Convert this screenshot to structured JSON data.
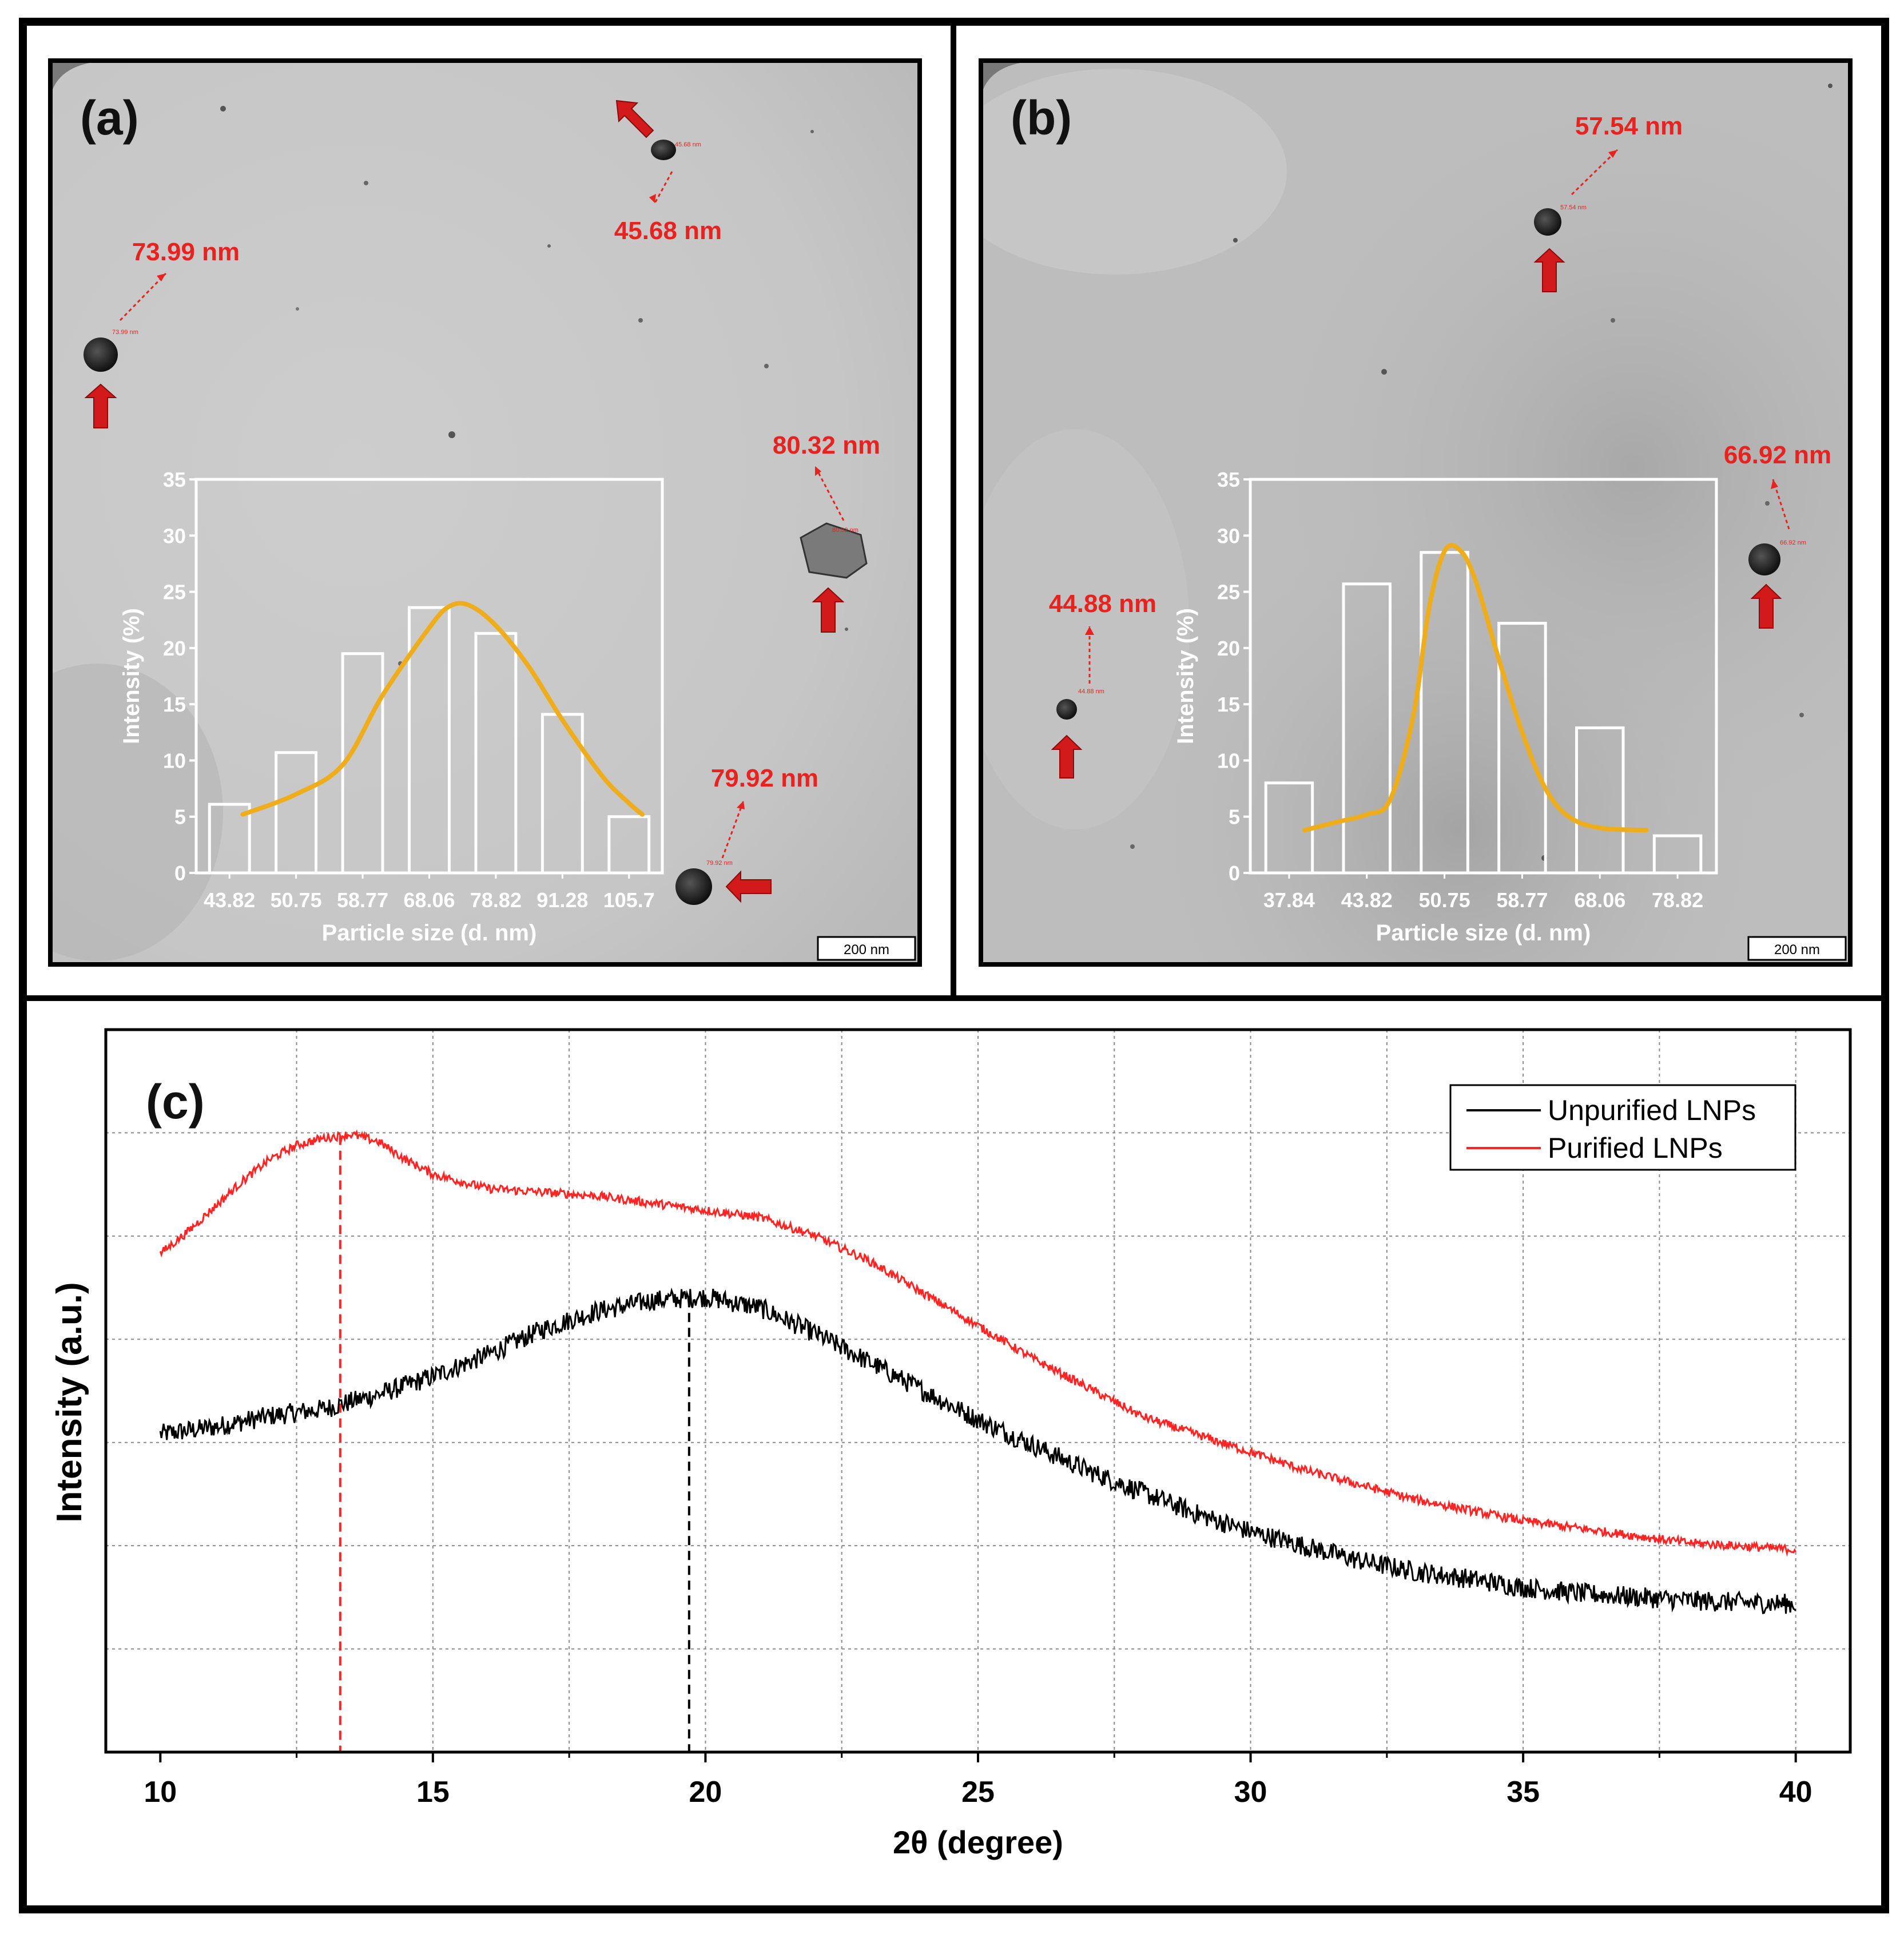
{
  "colors": {
    "frame": "#000000",
    "tem_bg": "#c9c9c9",
    "tem_dark": "#a9a9a9",
    "annotation": "#e8231f",
    "arrow": "#d31a1a",
    "fit_curve": "#f0ad1b",
    "bar_outline": "#ffffff",
    "unpurified": "#000000",
    "purified": "#ff2424",
    "grid": "#8a8a8a"
  },
  "panel_a": {
    "label": "(a)",
    "scale_bar": "200 nm",
    "annotations": [
      "73.99 nm",
      "45.68 nm",
      "80.32 nm",
      "79.92 nm"
    ],
    "particle_tags": [
      "73.99 nm",
      "45.68 nm",
      "80.32 nm",
      "79.92 nm"
    ]
  },
  "panel_b": {
    "label": "(b)",
    "scale_bar": "200 nm",
    "annotations": [
      "57.54 nm",
      "66.92 nm",
      "44.88 nm"
    ],
    "particle_tags": [
      "57.54 nm",
      "66.92 nm",
      "44.88 nm"
    ]
  },
  "panel_c": {
    "label": "(c)"
  },
  "chart_data": [
    {
      "id": "a",
      "type": "bar",
      "title": "",
      "xlabel": "Particle size (d. nm)",
      "ylabel": "Intensity (%)",
      "ylim": [
        0,
        35
      ],
      "yticks": [
        "0",
        "5",
        "10",
        "15",
        "20",
        "25",
        "30",
        "35"
      ],
      "categories": [
        "43.82",
        "50.75",
        "58.77",
        "68.06",
        "78.82",
        "91.28",
        "105.7"
      ],
      "values": [
        6.1,
        10.7,
        19.5,
        23.6,
        21.3,
        14.1,
        5.0
      ],
      "fit_curve": [
        [
          0.2,
          5.2
        ],
        [
          1,
          7
        ],
        [
          1.7,
          9.6
        ],
        [
          2.3,
          15.8
        ],
        [
          3,
          21.8
        ],
        [
          3.3,
          23.7
        ],
        [
          3.6,
          23.8
        ],
        [
          4,
          22
        ],
        [
          4.5,
          18.3
        ],
        [
          5,
          13.6
        ],
        [
          5.6,
          8.6
        ],
        [
          6,
          6.2
        ],
        [
          6.2,
          5.2
        ]
      ],
      "grid": false
    },
    {
      "id": "b",
      "type": "bar",
      "title": "",
      "xlabel": "Particle size (d. nm)",
      "ylabel": "Intensity (%)",
      "ylim": [
        0,
        35
      ],
      "yticks": [
        "0",
        "5",
        "10",
        "15",
        "20",
        "25",
        "30",
        "35"
      ],
      "categories": [
        "37.84",
        "43.82",
        "50.75",
        "58.77",
        "68.06",
        "78.82"
      ],
      "values": [
        8.0,
        25.7,
        28.5,
        22.2,
        12.9,
        3.3
      ],
      "fit_curve": [
        [
          0.2,
          3.8
        ],
        [
          0.6,
          4.5
        ],
        [
          1,
          5.2
        ],
        [
          1.3,
          6.5
        ],
        [
          1.6,
          14
        ],
        [
          1.8,
          23.5
        ],
        [
          2,
          28.6
        ],
        [
          2.2,
          28.7
        ],
        [
          2.4,
          26
        ],
        [
          2.7,
          19
        ],
        [
          3,
          12.5
        ],
        [
          3.3,
          7.5
        ],
        [
          3.6,
          5
        ],
        [
          4,
          4
        ],
        [
          4.6,
          3.8
        ]
      ],
      "grid": false
    },
    {
      "id": "c",
      "type": "line",
      "title": "",
      "xlabel": "2θ (degree)",
      "ylabel": "Intensity (a.u.)",
      "xlim": [
        9,
        41
      ],
      "ylim": [
        0,
        1
      ],
      "xticks": [
        "10",
        "15",
        "20",
        "25",
        "30",
        "35",
        "40"
      ],
      "grid": true,
      "legend_position": "top-right",
      "reference_lines": [
        {
          "series": "Purified LNPs",
          "x": 13.3
        },
        {
          "series": "Unpurified LNPs",
          "x": 19.7
        }
      ],
      "series": [
        {
          "name": "Unpurified LNPs",
          "color": "#000000",
          "noise": 0.007,
          "points": [
            [
              10,
              0.44
            ],
            [
              11,
              0.45
            ],
            [
              12,
              0.465
            ],
            [
              13,
              0.475
            ],
            [
              14,
              0.495
            ],
            [
              15,
              0.52
            ],
            [
              16,
              0.55
            ],
            [
              17,
              0.585
            ],
            [
              18,
              0.61
            ],
            [
              19,
              0.625
            ],
            [
              20,
              0.63
            ],
            [
              21,
              0.615
            ],
            [
              22,
              0.58
            ],
            [
              23,
              0.54
            ],
            [
              24,
              0.5
            ],
            [
              25,
              0.46
            ],
            [
              26,
              0.425
            ],
            [
              27,
              0.39
            ],
            [
              28,
              0.36
            ],
            [
              29,
              0.33
            ],
            [
              30,
              0.305
            ],
            [
              31,
              0.285
            ],
            [
              32,
              0.265
            ],
            [
              33,
              0.25
            ],
            [
              34,
              0.24
            ],
            [
              35,
              0.228
            ],
            [
              36,
              0.22
            ],
            [
              37,
              0.215
            ],
            [
              38,
              0.21
            ],
            [
              39,
              0.207
            ],
            [
              40,
              0.205
            ]
          ]
        },
        {
          "name": "Purified LNPs",
          "color": "#ff2424",
          "noise": 0.003,
          "points": [
            [
              10,
              0.69
            ],
            [
              10.5,
              0.72
            ],
            [
              11,
              0.755
            ],
            [
              11.5,
              0.79
            ],
            [
              12,
              0.82
            ],
            [
              12.5,
              0.84
            ],
            [
              13,
              0.85
            ],
            [
              13.5,
              0.855
            ],
            [
              14,
              0.845
            ],
            [
              14.5,
              0.82
            ],
            [
              15,
              0.8
            ],
            [
              16,
              0.78
            ],
            [
              17,
              0.775
            ],
            [
              18,
              0.77
            ],
            [
              19,
              0.76
            ],
            [
              20,
              0.75
            ],
            [
              21,
              0.74
            ],
            [
              22,
              0.715
            ],
            [
              23,
              0.68
            ],
            [
              24,
              0.635
            ],
            [
              25,
              0.59
            ],
            [
              26,
              0.545
            ],
            [
              27,
              0.505
            ],
            [
              28,
              0.465
            ],
            [
              29,
              0.44
            ],
            [
              30,
              0.415
            ],
            [
              31,
              0.39
            ],
            [
              32,
              0.37
            ],
            [
              33,
              0.35
            ],
            [
              34,
              0.335
            ],
            [
              35,
              0.32
            ],
            [
              36,
              0.31
            ],
            [
              37,
              0.3
            ],
            [
              38,
              0.29
            ],
            [
              39,
              0.285
            ],
            [
              40,
              0.28
            ]
          ]
        }
      ]
    }
  ]
}
